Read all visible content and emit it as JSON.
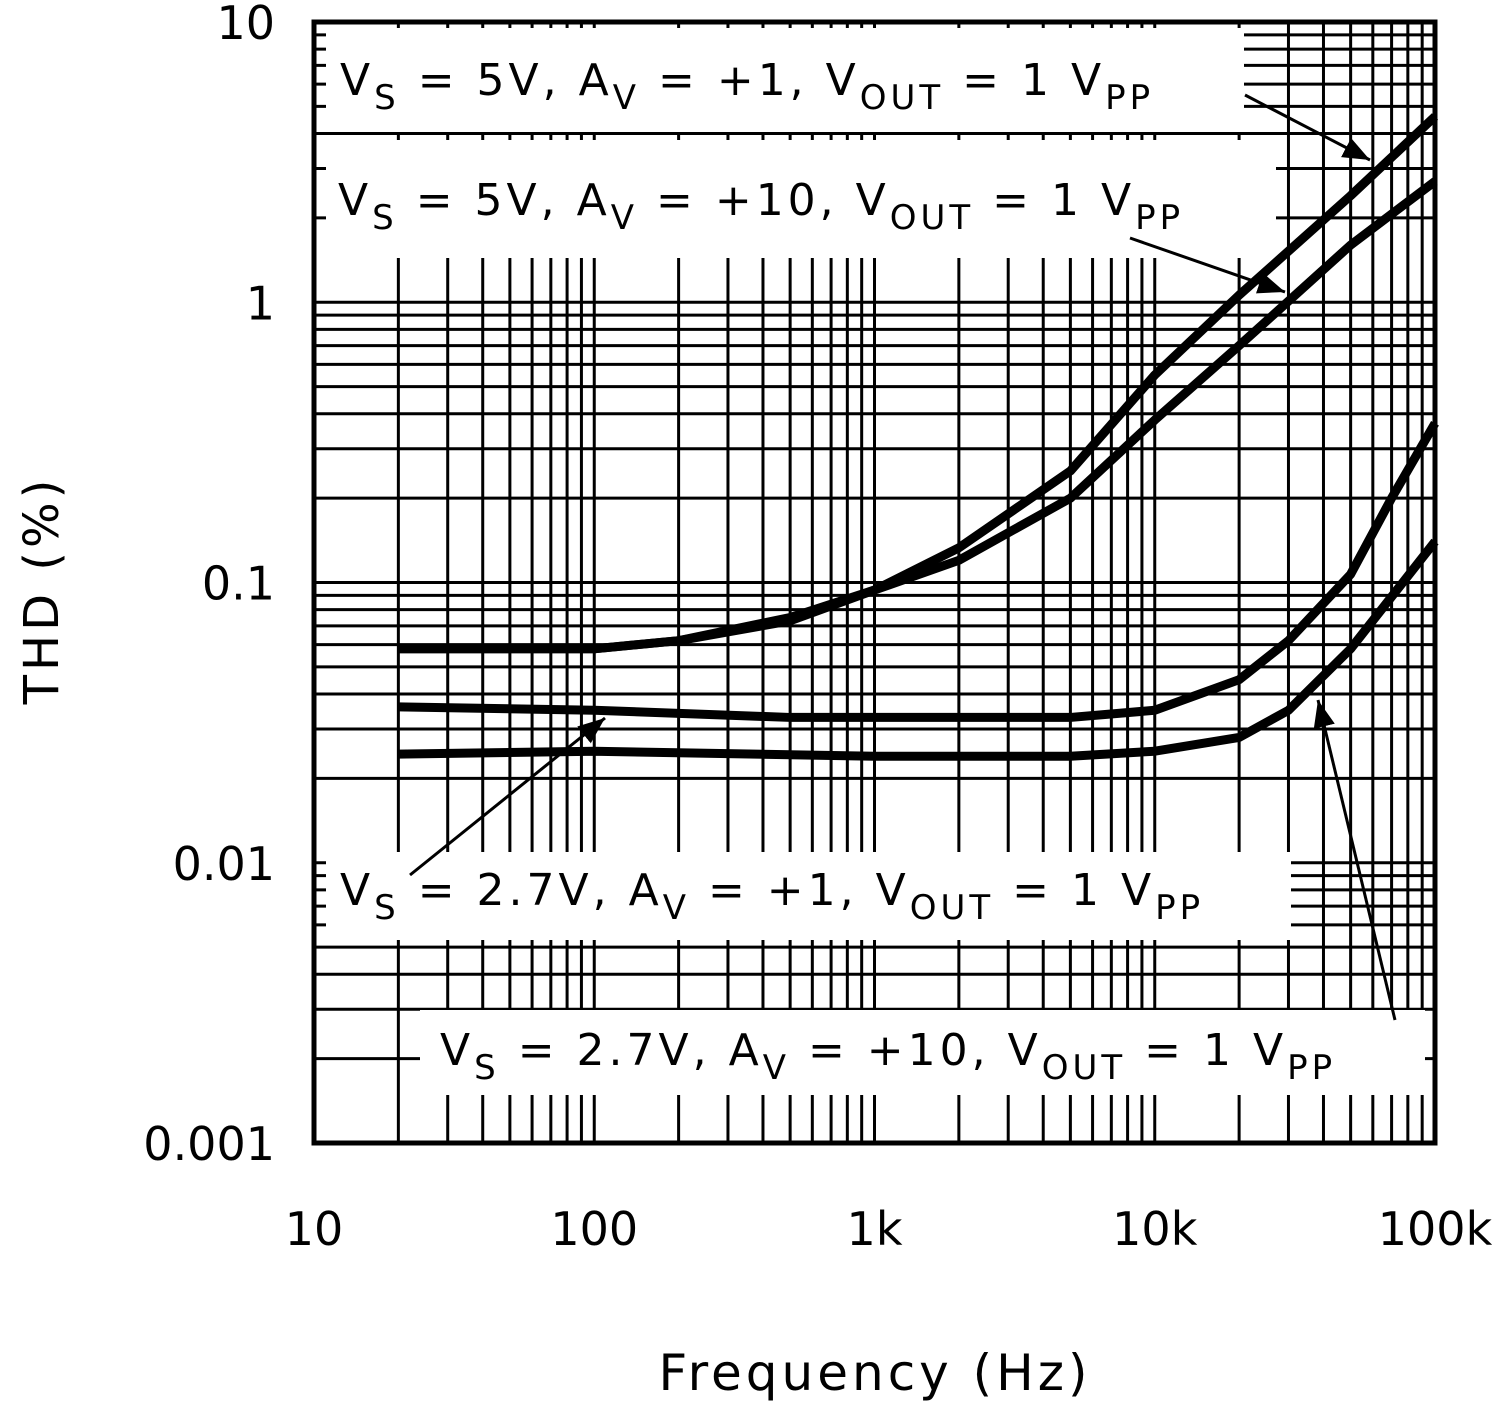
{
  "chart_data": {
    "type": "line",
    "x_label": "Frequency (Hz)",
    "y_label": "THD (%)",
    "xlim": [
      10,
      100000
    ],
    "ylim": [
      0.001,
      10
    ],
    "xscale": "log",
    "yscale": "log",
    "grid": true,
    "minor_grid": true,
    "color": "#000000",
    "xticks": [
      10,
      100,
      {
        "value": 1000,
        "label": "1k"
      },
      {
        "value": 10000,
        "label": "10k"
      },
      {
        "value": 100000,
        "label": "100k"
      }
    ],
    "yticks": [
      0.001,
      0.01,
      0.1,
      1,
      10
    ],
    "series": [
      {
        "x": [
          20,
          100,
          200,
          500,
          1000,
          2000,
          5000,
          10000,
          20000,
          50000,
          100000
        ],
        "values": [
          0.058,
          0.058,
          0.062,
          0.075,
          0.094,
          0.133,
          0.25,
          0.55,
          1.06,
          2.4,
          4.6
        ]
      },
      {
        "x": [
          20,
          100,
          200,
          500,
          1000,
          2000,
          5000,
          10000,
          20000,
          50000,
          100000
        ],
        "values": [
          0.058,
          0.058,
          0.062,
          0.073,
          0.094,
          0.12,
          0.2,
          0.38,
          0.7,
          1.6,
          2.7
        ]
      },
      {
        "x": [
          20,
          100,
          500,
          1000,
          5000,
          10000,
          20000,
          30000,
          50000,
          70000,
          100000
        ],
        "values": [
          0.036,
          0.035,
          0.033,
          0.033,
          0.033,
          0.035,
          0.045,
          0.062,
          0.107,
          0.2,
          0.37
        ]
      },
      {
        "x": [
          20,
          100,
          1000,
          5000,
          10000,
          20000,
          30000,
          50000,
          100000
        ],
        "values": [
          0.0244,
          0.025,
          0.024,
          0.024,
          0.025,
          0.028,
          0.035,
          0.058,
          0.14
        ]
      }
    ],
    "annotations": [
      [
        "V",
        "S",
        " = 5V, A",
        "V",
        " = +1, V",
        "OUT",
        " = 1 V",
        "PP"
      ],
      [
        "V",
        "S",
        " = 5V, A",
        "V",
        " = +10, V",
        "OUT",
        " = 1 V",
        "PP"
      ],
      [
        "V",
        "S",
        " = 2.7V, A",
        "V",
        " = +1, V",
        "OUT",
        " = 1 V",
        "PP"
      ],
      [
        "V",
        "S",
        " = 2.7V, A",
        "V",
        " = +10, V",
        "OUT",
        " = 1 V",
        "PP"
      ]
    ]
  }
}
